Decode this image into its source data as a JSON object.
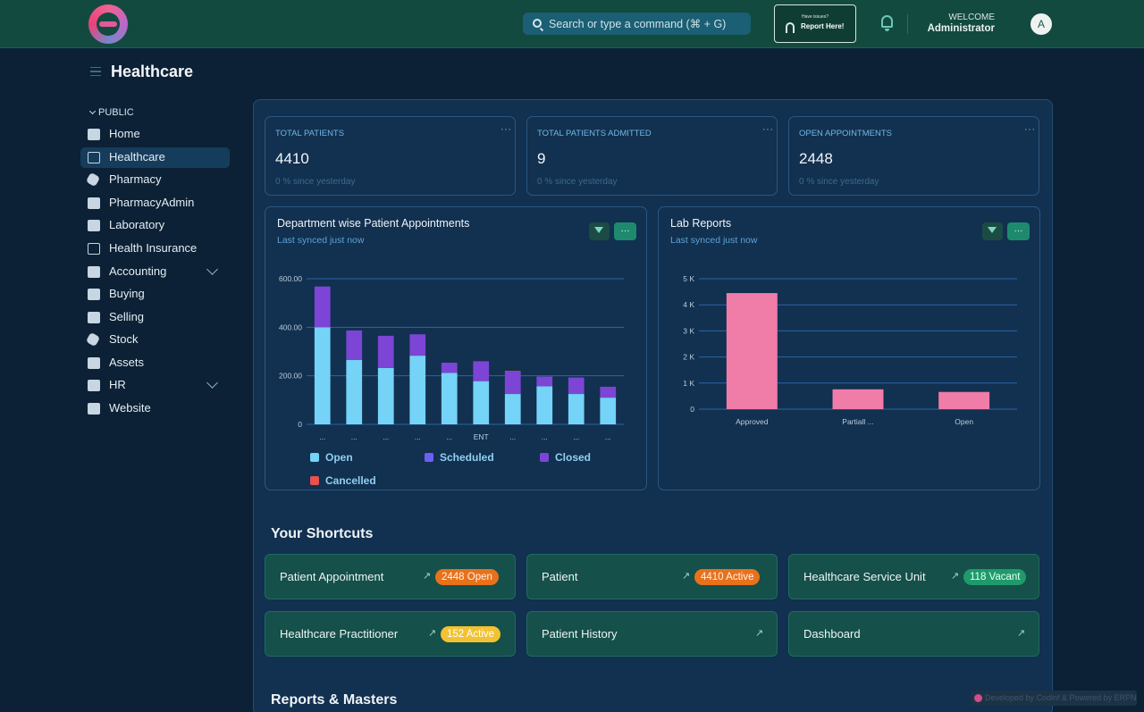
{
  "topbar": {
    "search_placeholder": "Search or type a command (⌘ + G)",
    "report_small": "Have issues?",
    "report_label": "Report Here!",
    "welcome": "WELCOME",
    "username": "Administrator",
    "avatar_letter": "A"
  },
  "page": {
    "title": "Healthcare"
  },
  "sidebar": {
    "section": "PUBLIC",
    "items": [
      {
        "label": "Home",
        "icon": "tools-icon"
      },
      {
        "label": "Healthcare",
        "icon": "healthcare-icon"
      },
      {
        "label": "Pharmacy",
        "icon": "cube-icon"
      },
      {
        "label": "PharmacyAdmin",
        "icon": "folder-icon"
      },
      {
        "label": "Laboratory",
        "icon": "laboratory-icon"
      },
      {
        "label": "Health Insurance",
        "icon": "health-insurance-icon"
      },
      {
        "label": "Accounting",
        "icon": "folder-icon"
      },
      {
        "label": "Buying",
        "icon": "folder-icon"
      },
      {
        "label": "Selling",
        "icon": "folder-icon"
      },
      {
        "label": "Stock",
        "icon": "cube-icon"
      },
      {
        "label": "Assets",
        "icon": "assets-icon"
      },
      {
        "label": "HR",
        "icon": "briefcase-icon"
      },
      {
        "label": "Website",
        "icon": "folder-icon"
      }
    ]
  },
  "stats": [
    {
      "title": "TOTAL PATIENTS",
      "value": "4410",
      "sub": "0 % since yesterday"
    },
    {
      "title": "TOTAL PATIENTS ADMITTED",
      "value": "9",
      "sub": "0 % since yesterday"
    },
    {
      "title": "OPEN APPOINTMENTS",
      "value": "2448",
      "sub": "0 % since yesterday"
    }
  ],
  "cards": {
    "appointments": {
      "title": "Department wise Patient Appointments",
      "sub": "Last synced just now"
    },
    "lab": {
      "title": "Lab Reports",
      "sub": "Last synced just now"
    },
    "more_label": "···"
  },
  "chart_data": [
    {
      "type": "bar",
      "stacked": true,
      "title": "Department wise Patient Appointments",
      "categories": [
        "...",
        "...",
        "...",
        "...",
        "...",
        "ENT",
        "...",
        "...",
        "...",
        "..."
      ],
      "series": [
        {
          "name": "Open",
          "color": "#74d3f7",
          "values": [
            400,
            265,
            232,
            283,
            212,
            178,
            125,
            157,
            125,
            110
          ]
        },
        {
          "name": "Scheduled",
          "color": "#6f5ef2",
          "values": [
            0,
            0,
            0,
            0,
            0,
            0,
            0,
            0,
            0,
            0
          ]
        },
        {
          "name": "Closed",
          "color": "#7c45d6",
          "values": [
            168,
            122,
            133,
            88,
            42,
            82,
            92,
            40,
            68,
            45
          ]
        },
        {
          "name": "Cancelled",
          "color": "#e9514d",
          "values": [
            0,
            0,
            0,
            0,
            0,
            0,
            3,
            0,
            0,
            0
          ]
        }
      ],
      "yticks": [
        "0",
        "200.00",
        "400.00",
        "600.00"
      ],
      "ylim": [
        0,
        600
      ],
      "grid": true,
      "legend": "bottom"
    },
    {
      "type": "bar",
      "title": "Lab Reports",
      "categories": [
        "Approved",
        "Partiall ...",
        "Open"
      ],
      "values": [
        4450,
        760,
        660
      ],
      "color": "#f07ca8",
      "yticks": [
        "0",
        "1 K",
        "2 K",
        "3 K",
        "4 K",
        "5 K"
      ],
      "ylim": [
        0,
        5000
      ],
      "grid": true
    }
  ],
  "shortcuts": {
    "title": "Your Shortcuts",
    "items": [
      {
        "label": "Patient Appointment",
        "badge": "2448 Open",
        "badge_color": "orange"
      },
      {
        "label": "Patient",
        "badge": "4410 Active",
        "badge_color": "orange"
      },
      {
        "label": "Healthcare Service Unit",
        "badge": "118 Vacant",
        "badge_color": "green"
      },
      {
        "label": "Healthcare Practitioner",
        "badge": "152 Active",
        "badge_color": "yellow"
      },
      {
        "label": "Patient History",
        "badge": ""
      },
      {
        "label": "Dashboard",
        "badge": ""
      }
    ]
  },
  "reports": {
    "title": "Reports & Masters"
  },
  "footer": {
    "text": "Developed by Codinf & Powered by ERPNext"
  },
  "colors": {
    "topbar": "#134a3f",
    "background": "#0c2135",
    "accent": "#1d8a6e"
  }
}
